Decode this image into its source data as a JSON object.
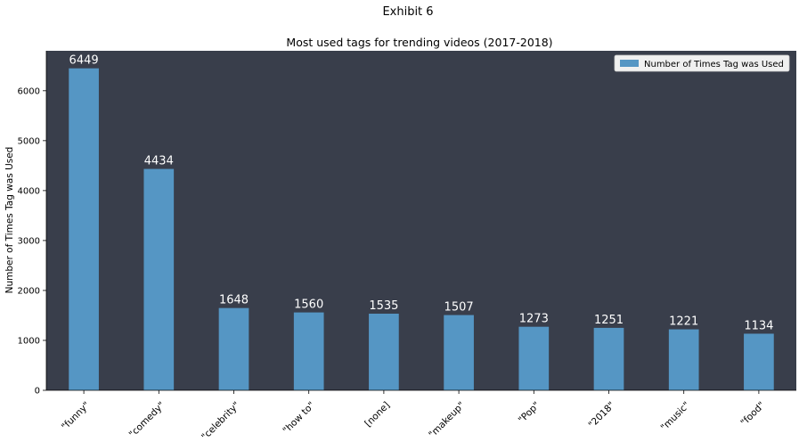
{
  "suptitle": "Exhibit 6",
  "chart_data": {
    "type": "bar",
    "title": "Most used tags for trending videos (2017-2018)",
    "xlabel": "",
    "ylabel": "Number of Times Tag was Used",
    "categories": [
      "\"funny\"",
      "\"comedy\"",
      "\"celebrity\"",
      "\"how to\"",
      "[none]",
      "\"makeup\"",
      "\"Pop\"",
      "\"2018\"",
      "\"music\"",
      "\"food\""
    ],
    "series": [
      {
        "name": "Number of Times Tag was Used",
        "values": [
          6449,
          4434,
          1648,
          1560,
          1535,
          1507,
          1273,
          1251,
          1221,
          1134
        ]
      }
    ],
    "ylim": [
      0,
      6800
    ],
    "yticks": [
      0,
      1000,
      2000,
      3000,
      4000,
      5000,
      6000
    ],
    "grid": false,
    "legend_position": "top-right",
    "data_labels": true,
    "colors": {
      "bar": "#5596c4",
      "plot_background": "#393e4b",
      "data_label": "#ffffff",
      "legend_background": "#f0f0f0"
    }
  }
}
